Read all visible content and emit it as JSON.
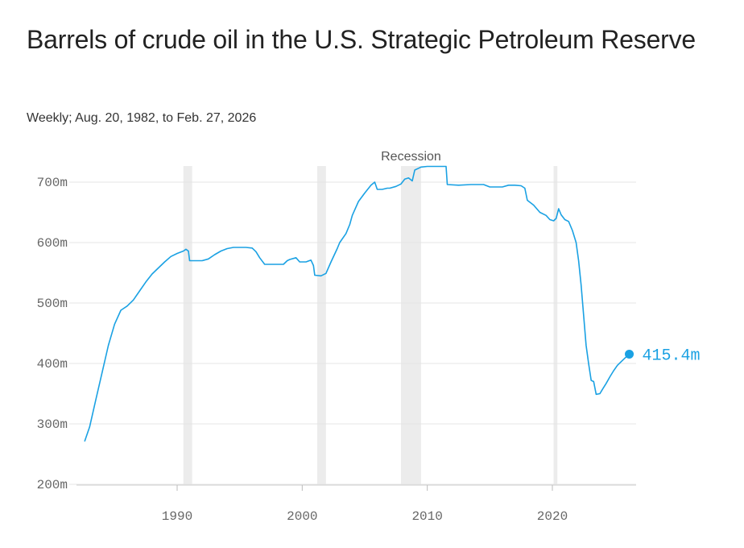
{
  "title": "Barrels of crude oil in the U.S. Strategic Petroleum Reserve",
  "subtitle": "Weekly; Aug. 20, 1982, to Feb. 27, 2026",
  "colors": {
    "line": "#1aa1e3",
    "recession": "#ececec",
    "grid": "#e4e4e4"
  },
  "chart_data": {
    "type": "line",
    "title": "Barrels of crude oil in the U.S. Strategic Petroleum Reserve",
    "subtitle": "Weekly; Aug. 20, 1982, to Feb. 27, 2026",
    "xlabel": "",
    "ylabel": "",
    "xlim": [
      1981.5,
      2026.5
    ],
    "ylim": [
      200,
      720
    ],
    "y_ticks": [
      {
        "value": 200,
        "label": "200m"
      },
      {
        "value": 300,
        "label": "300m"
      },
      {
        "value": 400,
        "label": "400m"
      },
      {
        "value": 500,
        "label": "500m"
      },
      {
        "value": 600,
        "label": "600m"
      },
      {
        "value": 700,
        "label": "700m"
      }
    ],
    "x_ticks": [
      {
        "value": 1990,
        "label": "1990"
      },
      {
        "value": 2000,
        "label": "2000"
      },
      {
        "value": 2010,
        "label": "2010"
      },
      {
        "value": 2020,
        "label": "2020"
      }
    ],
    "grid": "horizontal",
    "annotation_label": "Recession",
    "recessions": [
      [
        1990.5,
        1991.2
      ],
      [
        2001.2,
        2001.9
      ],
      [
        2007.9,
        2009.5
      ],
      [
        2020.1,
        2020.4
      ]
    ],
    "end_value_label": "415.4m",
    "series": [
      {
        "values": [
          [
            1982.6,
            271
          ],
          [
            1983.0,
            295
          ],
          [
            1983.5,
            340
          ],
          [
            1984.0,
            385
          ],
          [
            1984.5,
            430
          ],
          [
            1985.0,
            465
          ],
          [
            1985.5,
            488
          ],
          [
            1986.0,
            495
          ],
          [
            1986.5,
            505
          ],
          [
            1987.0,
            520
          ],
          [
            1987.5,
            535
          ],
          [
            1988.0,
            548
          ],
          [
            1988.5,
            558
          ],
          [
            1989.0,
            568
          ],
          [
            1989.5,
            577
          ],
          [
            1990.0,
            582
          ],
          [
            1990.5,
            586
          ],
          [
            1990.7,
            589
          ],
          [
            1990.9,
            586
          ],
          [
            1991.0,
            570
          ],
          [
            1991.5,
            570
          ],
          [
            1992.0,
            570
          ],
          [
            1992.5,
            573
          ],
          [
            1993.0,
            580
          ],
          [
            1993.5,
            586
          ],
          [
            1994.0,
            590
          ],
          [
            1994.5,
            592
          ],
          [
            1995.0,
            592
          ],
          [
            1995.5,
            592
          ],
          [
            1996.0,
            591
          ],
          [
            1996.3,
            585
          ],
          [
            1996.6,
            575
          ],
          [
            1997.0,
            564
          ],
          [
            1997.5,
            564
          ],
          [
            1998.0,
            564
          ],
          [
            1998.5,
            564
          ],
          [
            1998.8,
            570
          ],
          [
            1999.0,
            572
          ],
          [
            1999.5,
            575
          ],
          [
            1999.8,
            568
          ],
          [
            2000.3,
            568
          ],
          [
            2000.7,
            571
          ],
          [
            2000.9,
            562
          ],
          [
            2001.0,
            546
          ],
          [
            2001.5,
            545
          ],
          [
            2001.9,
            549
          ],
          [
            2002.3,
            568
          ],
          [
            2002.8,
            590
          ],
          [
            2003.0,
            600
          ],
          [
            2003.5,
            615
          ],
          [
            2003.8,
            630
          ],
          [
            2004.0,
            645
          ],
          [
            2004.5,
            668
          ],
          [
            2005.0,
            682
          ],
          [
            2005.5,
            695
          ],
          [
            2005.8,
            700
          ],
          [
            2006.0,
            688
          ],
          [
            2006.4,
            688
          ],
          [
            2006.8,
            690
          ],
          [
            2007.0,
            690
          ],
          [
            2007.5,
            693
          ],
          [
            2007.9,
            697
          ],
          [
            2008.2,
            705
          ],
          [
            2008.5,
            707
          ],
          [
            2008.8,
            702
          ],
          [
            2009.0,
            720
          ],
          [
            2009.5,
            725
          ],
          [
            2010.0,
            726
          ],
          [
            2010.5,
            726
          ],
          [
            2011.0,
            726
          ],
          [
            2011.5,
            726
          ],
          [
            2011.6,
            696
          ],
          [
            2012.5,
            695
          ],
          [
            2013.5,
            696
          ],
          [
            2014.5,
            696
          ],
          [
            2015.0,
            692
          ],
          [
            2016.0,
            692
          ],
          [
            2016.5,
            695
          ],
          [
            2017.0,
            695
          ],
          [
            2017.5,
            694
          ],
          [
            2017.8,
            690
          ],
          [
            2018.0,
            670
          ],
          [
            2018.5,
            662
          ],
          [
            2019.0,
            650
          ],
          [
            2019.5,
            645
          ],
          [
            2019.8,
            638
          ],
          [
            2020.1,
            636
          ],
          [
            2020.3,
            640
          ],
          [
            2020.5,
            656
          ],
          [
            2020.7,
            646
          ],
          [
            2021.0,
            638
          ],
          [
            2021.3,
            635
          ],
          [
            2021.6,
            620
          ],
          [
            2021.9,
            600
          ],
          [
            2022.1,
            570
          ],
          [
            2022.3,
            530
          ],
          [
            2022.5,
            480
          ],
          [
            2022.7,
            430
          ],
          [
            2022.9,
            400
          ],
          [
            2023.1,
            372
          ],
          [
            2023.3,
            370
          ],
          [
            2023.5,
            349
          ],
          [
            2023.8,
            350
          ],
          [
            2024.0,
            357
          ],
          [
            2024.3,
            367
          ],
          [
            2024.6,
            378
          ],
          [
            2024.9,
            388
          ],
          [
            2025.2,
            397
          ],
          [
            2025.5,
            403
          ],
          [
            2025.8,
            409
          ],
          [
            2026.15,
            415.4
          ]
        ]
      }
    ]
  }
}
